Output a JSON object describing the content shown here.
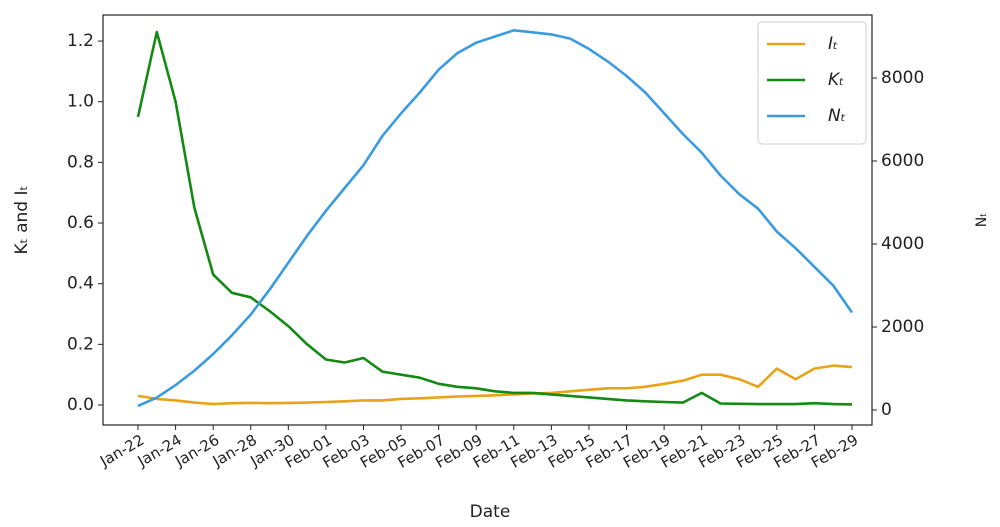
{
  "chart_data": {
    "type": "line",
    "xlabel": "Date",
    "ylabel": "Kₜ and Iₜ",
    "y2label": "Nₜ",
    "categories": [
      "Jan-22",
      null,
      "Jan-24",
      null,
      "Jan-26",
      null,
      "Jan-28",
      null,
      "Jan-30",
      null,
      "Feb-01",
      null,
      "Feb-03",
      null,
      "Feb-05",
      null,
      "Feb-07",
      null,
      "Feb-09",
      null,
      "Feb-11",
      null,
      "Feb-13",
      null,
      "Feb-15",
      null,
      "Feb-17",
      null,
      "Feb-19",
      null,
      "Feb-21",
      null,
      "Feb-23",
      null,
      "Feb-25",
      null,
      "Feb-27",
      null,
      "Feb-29"
    ],
    "series": [
      {
        "name": "Iₜ",
        "color": "#e8a317",
        "values": [
          0.03,
          0.02,
          0.015,
          0.008,
          0.003,
          0.006,
          0.007,
          0.006,
          0.007,
          0.008,
          0.01,
          0.012,
          0.015,
          0.015,
          0.02,
          0.022,
          0.025,
          0.028,
          0.03,
          0.032,
          0.035,
          0.038,
          0.04,
          0.045,
          0.05,
          0.055,
          0.055,
          0.06,
          0.07,
          0.08,
          0.1,
          0.1,
          0.085,
          0.06,
          0.12,
          0.085,
          0.12,
          0.13,
          0.125
        ]
      },
      {
        "name": "Kₜ",
        "color": "#138a13",
        "values": [
          0.95,
          1.23,
          1.0,
          0.65,
          0.43,
          0.37,
          0.355,
          0.31,
          0.26,
          0.2,
          0.15,
          0.14,
          0.155,
          0.11,
          0.1,
          0.09,
          0.07,
          0.06,
          0.055,
          0.045,
          0.04,
          0.04,
          0.035,
          0.03,
          0.025,
          0.02,
          0.015,
          0.012,
          0.01,
          0.008,
          0.04,
          0.005,
          0.004,
          0.003,
          0.003,
          0.003,
          0.006,
          0.003,
          0.002
        ]
      },
      {
        "name": "Nₜ",
        "color": "#3a9be0",
        "axis": "y2",
        "values": [
          100,
          300,
          600,
          950,
          1350,
          1800,
          2300,
          2900,
          3550,
          4200,
          4800,
          5350,
          5900,
          6600,
          7150,
          7650,
          8200,
          8600,
          8850,
          9000,
          9150,
          9100,
          9050,
          8950,
          8700,
          8400,
          8050,
          7650,
          7150,
          6650,
          6200,
          5650,
          5200,
          4850,
          4300,
          3900,
          3450,
          3000,
          2350
        ]
      }
    ],
    "ylim": [
      -0.066,
      1.286
    ],
    "yticks": [
      {
        "value": 0,
        "label": "0.0"
      },
      0.2,
      0.4,
      0.6,
      0.8,
      {
        "value": 1,
        "label": "1.0"
      },
      1.2
    ],
    "y2lim": [
      -361,
      9518
    ],
    "y2ticks": [
      0,
      2000,
      4000,
      6000,
      8000
    ],
    "legend": "upper right"
  }
}
